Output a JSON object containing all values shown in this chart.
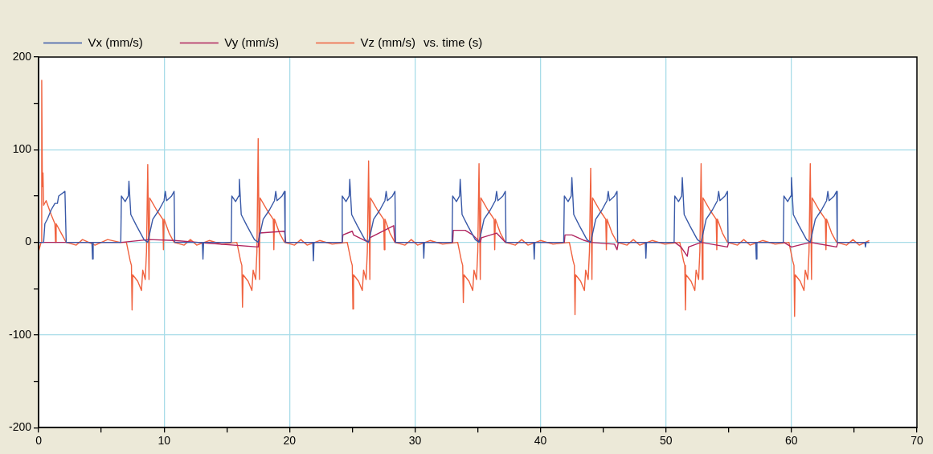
{
  "chart_data": {
    "type": "line",
    "annotations": [
      "vs. time (s)"
    ],
    "xlim": [
      0,
      70
    ],
    "xticks": [
      0,
      {
        "value": 5,
        "label": null
      },
      10,
      {
        "value": 15,
        "label": null
      },
      20,
      {
        "value": 25,
        "label": null
      },
      30,
      {
        "value": 35,
        "label": null
      },
      40,
      {
        "value": 45,
        "label": null
      },
      50,
      {
        "value": 55,
        "label": null
      },
      60,
      {
        "value": 65,
        "label": null
      },
      70
    ],
    "ylim": [
      -200,
      200
    ],
    "yticks": [
      -200,
      {
        "value": -150,
        "label": null
      },
      -100,
      {
        "value": -50,
        "label": null
      },
      0,
      {
        "value": 50,
        "label": null
      },
      100,
      {
        "value": 150,
        "label": null
      },
      200
    ],
    "grid": true,
    "legend": "top left",
    "marker": "none",
    "line_style": "solid",
    "series": [
      {
        "name": "Vx (mm/s)",
        "color": "#3a5aa8",
        "x": [
          0,
          0.4,
          0.5,
          0.7,
          1.0,
          1.3,
          1.5,
          1.6,
          2.1,
          2.2,
          4.25,
          4.3,
          4.35,
          6.55,
          6.6,
          6.9,
          7.15,
          7.2,
          7.35,
          7.8,
          8.4,
          8.7,
          9.1,
          9.6,
          10.0,
          10.1,
          10.2,
          10.6,
          10.8,
          10.85,
          13.05,
          13.1,
          13.15,
          15.35,
          15.4,
          15.7,
          15.95,
          16.0,
          16.15,
          16.6,
          17.2,
          17.5,
          17.9,
          18.4,
          18.8,
          18.9,
          19.0,
          19.4,
          19.6,
          19.65,
          21.85,
          21.9,
          21.95,
          24.15,
          24.2,
          24.5,
          24.75,
          24.8,
          24.95,
          25.4,
          26.0,
          26.3,
          26.7,
          27.2,
          27.6,
          27.7,
          27.8,
          28.2,
          28.4,
          28.45,
          30.65,
          30.7,
          30.75,
          32.95,
          33.0,
          33.3,
          33.55,
          33.6,
          33.75,
          34.2,
          34.8,
          35.1,
          35.5,
          36.0,
          36.4,
          36.5,
          36.6,
          37.0,
          37.2,
          37.25,
          39.45,
          39.5,
          39.55,
          41.85,
          41.9,
          42.2,
          42.45,
          42.5,
          42.65,
          43.1,
          43.7,
          44.0,
          44.4,
          44.9,
          45.3,
          45.4,
          45.5,
          45.9,
          46.1,
          46.15,
          48.35,
          48.4,
          48.45,
          50.65,
          50.7,
          51.0,
          51.25,
          51.3,
          51.45,
          51.9,
          52.5,
          52.8,
          53.2,
          53.7,
          54.1,
          54.2,
          54.3,
          54.7,
          54.9,
          54.95,
          57.15,
          57.2,
          57.25,
          59.35,
          59.4,
          59.7,
          59.95,
          60.0,
          60.15,
          60.6,
          61.2,
          61.5,
          61.9,
          62.4,
          62.8,
          62.9,
          63.0,
          63.4,
          63.6,
          63.65,
          65.85,
          65.9,
          65.95,
          66.2
        ],
        "values": [
          0,
          0,
          20,
          25,
          35,
          42,
          42,
          50,
          55,
          0,
          0,
          -18,
          0,
          0,
          50,
          44,
          50,
          66,
          30,
          18,
          3,
          0,
          25,
          35,
          45,
          55,
          45,
          50,
          55,
          0,
          0,
          -18,
          0,
          0,
          50,
          44,
          50,
          68,
          30,
          18,
          3,
          0,
          25,
          35,
          45,
          55,
          45,
          50,
          55,
          0,
          0,
          -20,
          0,
          0,
          50,
          44,
          50,
          68,
          30,
          18,
          3,
          0,
          25,
          35,
          45,
          55,
          45,
          50,
          55,
          0,
          0,
          -17,
          0,
          0,
          50,
          44,
          50,
          68,
          30,
          18,
          3,
          0,
          25,
          35,
          45,
          55,
          45,
          50,
          55,
          0,
          0,
          -18,
          0,
          0,
          50,
          44,
          50,
          70,
          30,
          18,
          3,
          0,
          25,
          35,
          45,
          55,
          45,
          50,
          55,
          0,
          0,
          -17,
          0,
          0,
          50,
          44,
          50,
          70,
          30,
          18,
          3,
          0,
          25,
          35,
          45,
          55,
          45,
          50,
          55,
          0,
          0,
          -18,
          0,
          0,
          50,
          44,
          50,
          70,
          30,
          18,
          3,
          0,
          25,
          35,
          45,
          55,
          45,
          50,
          55,
          0,
          0,
          -5,
          0,
          0
        ]
      },
      {
        "name": "Vy (mm/s)",
        "color": "#b0245e",
        "x": [
          0,
          6.6,
          8.8,
          10.8,
          17.5,
          17.6,
          19.6,
          19.7,
          24.2,
          24.25,
          25.0,
          25.1,
          26.3,
          26.4,
          28.3,
          28.4,
          33.0,
          33.05,
          34.0,
          34.6,
          35.2,
          35.3,
          36.5,
          37.2,
          41.9,
          41.95,
          42.5,
          43.5,
          44.0,
          45.9,
          46.1,
          46.2,
          50.7,
          51.2,
          51.7,
          51.8,
          52.8,
          54.9,
          55.0,
          59.4,
          60.0,
          61.5,
          63.6,
          63.7,
          66.2
        ],
        "values": [
          0,
          0,
          3,
          2,
          -5,
          10,
          12,
          0,
          0,
          8,
          12,
          8,
          0,
          5,
          18,
          0,
          0,
          13,
          13,
          8,
          0,
          5,
          10,
          0,
          0,
          8,
          8,
          2,
          0,
          -2,
          -8,
          0,
          0,
          -5,
          -15,
          -5,
          0,
          -5,
          0,
          0,
          -5,
          0,
          -5,
          0,
          0
        ]
      },
      {
        "name": "Vz (mm/s)",
        "color": "#f0623f",
        "x": [
          0,
          0.2,
          0.25,
          0.3,
          0.35,
          0.4,
          0.6,
          1.0,
          1.3,
          1.35,
          1.4,
          1.8,
          2.2,
          3.0,
          3.5,
          4.5,
          5.5,
          6.5,
          7.0,
          7.3,
          7.4,
          7.45,
          7.5,
          7.9,
          8.2,
          8.3,
          8.5,
          8.6,
          8.7,
          8.8,
          8.85,
          9.4,
          9.9,
          9.95,
          10.0,
          10.4,
          10.8,
          11.6,
          12.1,
          12.6,
          13.6,
          14.6,
          15.8,
          16.1,
          16.2,
          16.25,
          16.3,
          16.7,
          17.0,
          17.1,
          17.3,
          17.4,
          17.5,
          17.6,
          17.65,
          18.2,
          18.7,
          18.75,
          18.8,
          19.2,
          19.6,
          20.4,
          20.9,
          21.4,
          22.4,
          23.4,
          24.6,
          24.9,
          25.0,
          25.05,
          25.1,
          25.5,
          25.8,
          25.9,
          26.1,
          26.2,
          26.3,
          26.4,
          26.45,
          27.0,
          27.5,
          27.55,
          27.6,
          28.0,
          28.4,
          29.2,
          29.7,
          30.2,
          31.2,
          32.2,
          33.4,
          33.7,
          33.8,
          33.85,
          33.9,
          34.3,
          34.6,
          34.7,
          34.9,
          35.0,
          35.1,
          35.2,
          35.25,
          35.8,
          36.3,
          36.35,
          36.4,
          36.8,
          37.2,
          38.0,
          38.5,
          39.0,
          40.0,
          41.0,
          42.3,
          42.6,
          42.7,
          42.75,
          42.8,
          43.2,
          43.5,
          43.6,
          43.8,
          43.9,
          44.0,
          44.1,
          44.15,
          44.7,
          45.2,
          45.25,
          45.3,
          45.7,
          46.1,
          46.9,
          47.4,
          47.9,
          48.9,
          49.9,
          51.1,
          51.4,
          51.5,
          51.55,
          51.6,
          52.0,
          52.3,
          52.4,
          52.6,
          52.7,
          52.8,
          52.9,
          52.95,
          53.5,
          54.0,
          54.05,
          54.1,
          54.5,
          54.9,
          55.7,
          56.2,
          56.7,
          57.7,
          58.7,
          59.8,
          60.1,
          60.2,
          60.25,
          60.3,
          60.7,
          61.0,
          61.1,
          61.3,
          61.4,
          61.5,
          61.6,
          61.65,
          62.2,
          62.7,
          62.75,
          62.8,
          63.2,
          63.6,
          64.4,
          64.9,
          65.4,
          66.2
        ],
        "values": [
          -10,
          0,
          175,
          60,
          75,
          40,
          45,
          30,
          20,
          0,
          20,
          10,
          0,
          -3,
          3,
          -3,
          3,
          0,
          0,
          -20,
          -25,
          -73,
          -35,
          -42,
          -52,
          -30,
          -40,
          -10,
          84,
          -40,
          48,
          35,
          25,
          -8,
          25,
          10,
          0,
          -3,
          3,
          -3,
          2,
          -2,
          0,
          -20,
          -25,
          -70,
          -35,
          -42,
          -52,
          -30,
          -40,
          -10,
          112,
          -40,
          48,
          35,
          25,
          -8,
          25,
          10,
          0,
          -3,
          3,
          -3,
          2,
          -2,
          0,
          -20,
          -25,
          -72,
          -35,
          -42,
          -52,
          -30,
          -40,
          -10,
          88,
          -40,
          48,
          35,
          25,
          -8,
          25,
          10,
          0,
          -3,
          3,
          -3,
          2,
          -2,
          0,
          -20,
          -25,
          -65,
          -35,
          -42,
          -52,
          -30,
          -40,
          -10,
          85,
          -40,
          48,
          35,
          25,
          -8,
          25,
          10,
          0,
          -3,
          3,
          -3,
          2,
          -2,
          0,
          -20,
          -25,
          -78,
          -35,
          -42,
          -52,
          -30,
          -40,
          -10,
          80,
          -40,
          48,
          35,
          25,
          -8,
          25,
          10,
          0,
          -3,
          3,
          -3,
          2,
          -2,
          0,
          -20,
          -25,
          -73,
          -35,
          -42,
          -52,
          -30,
          -40,
          -10,
          85,
          -40,
          48,
          35,
          25,
          -8,
          25,
          10,
          0,
          -3,
          3,
          -3,
          2,
          -2,
          0,
          -20,
          -25,
          -80,
          -35,
          -42,
          -52,
          -30,
          -40,
          -10,
          85,
          -40,
          48,
          35,
          25,
          -8,
          25,
          10,
          0,
          -3,
          3,
          -3,
          2
        ]
      }
    ]
  }
}
